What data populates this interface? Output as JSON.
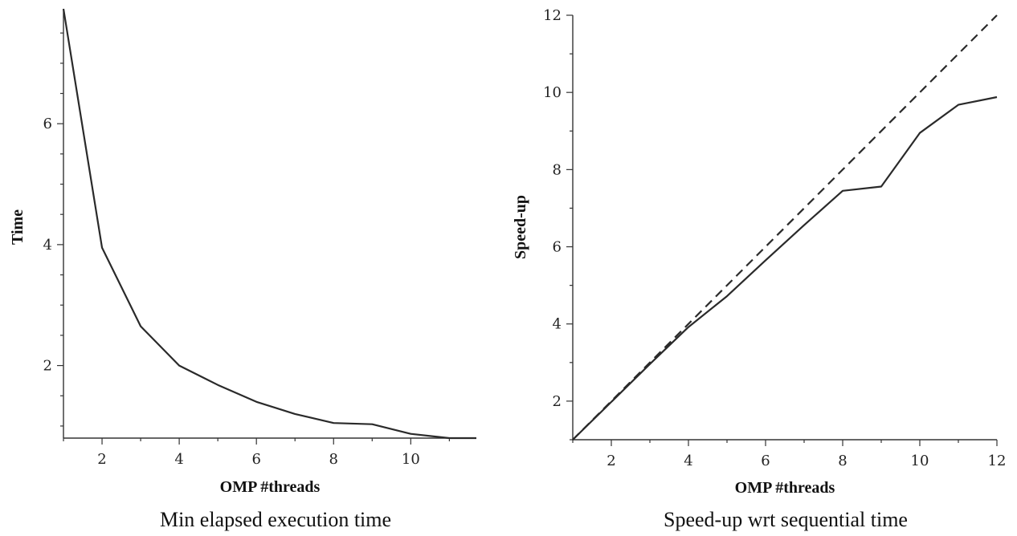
{
  "chart_data": [
    {
      "type": "line",
      "title": "",
      "caption": "Min elapsed execution time",
      "xlabel": "OMP #threads",
      "ylabel": "Time",
      "xlim": [
        1,
        11.7
      ],
      "ylim": [
        0.8,
        7.9
      ],
      "xticks": [
        2,
        4,
        6,
        8,
        10
      ],
      "yticks": [
        2,
        4,
        6
      ],
      "x": [
        1,
        2,
        3,
        4,
        5,
        6,
        7,
        8,
        9,
        10,
        11,
        11.7
      ],
      "series": [
        {
          "values": [
            7.9,
            3.95,
            2.65,
            2.0,
            1.68,
            1.4,
            1.2,
            1.05,
            1.03,
            0.87,
            0.8,
            0.8
          ]
        }
      ]
    },
    {
      "type": "line",
      "title": "",
      "caption": "Speed-up wrt sequential time",
      "xlabel": "OMP #threads",
      "ylabel": "Speed-up",
      "xlim": [
        1,
        12
      ],
      "ylim": [
        1,
        12
      ],
      "xticks": [
        2,
        4,
        6,
        8,
        10,
        12
      ],
      "yticks": [
        2,
        4,
        6,
        8,
        10,
        12
      ],
      "x": [
        1,
        2,
        3,
        4,
        5,
        6,
        7,
        8,
        9,
        10,
        11,
        12
      ],
      "series": [
        {
          "style": "solid",
          "values": [
            1,
            1.98,
            2.96,
            3.92,
            4.72,
            5.65,
            6.56,
            7.45,
            7.56,
            8.95,
            9.68,
            9.88
          ]
        },
        {
          "style": "dashed",
          "values": [
            1,
            2,
            3,
            4,
            5,
            6,
            7,
            8,
            9,
            10,
            11,
            12
          ]
        }
      ]
    }
  ]
}
